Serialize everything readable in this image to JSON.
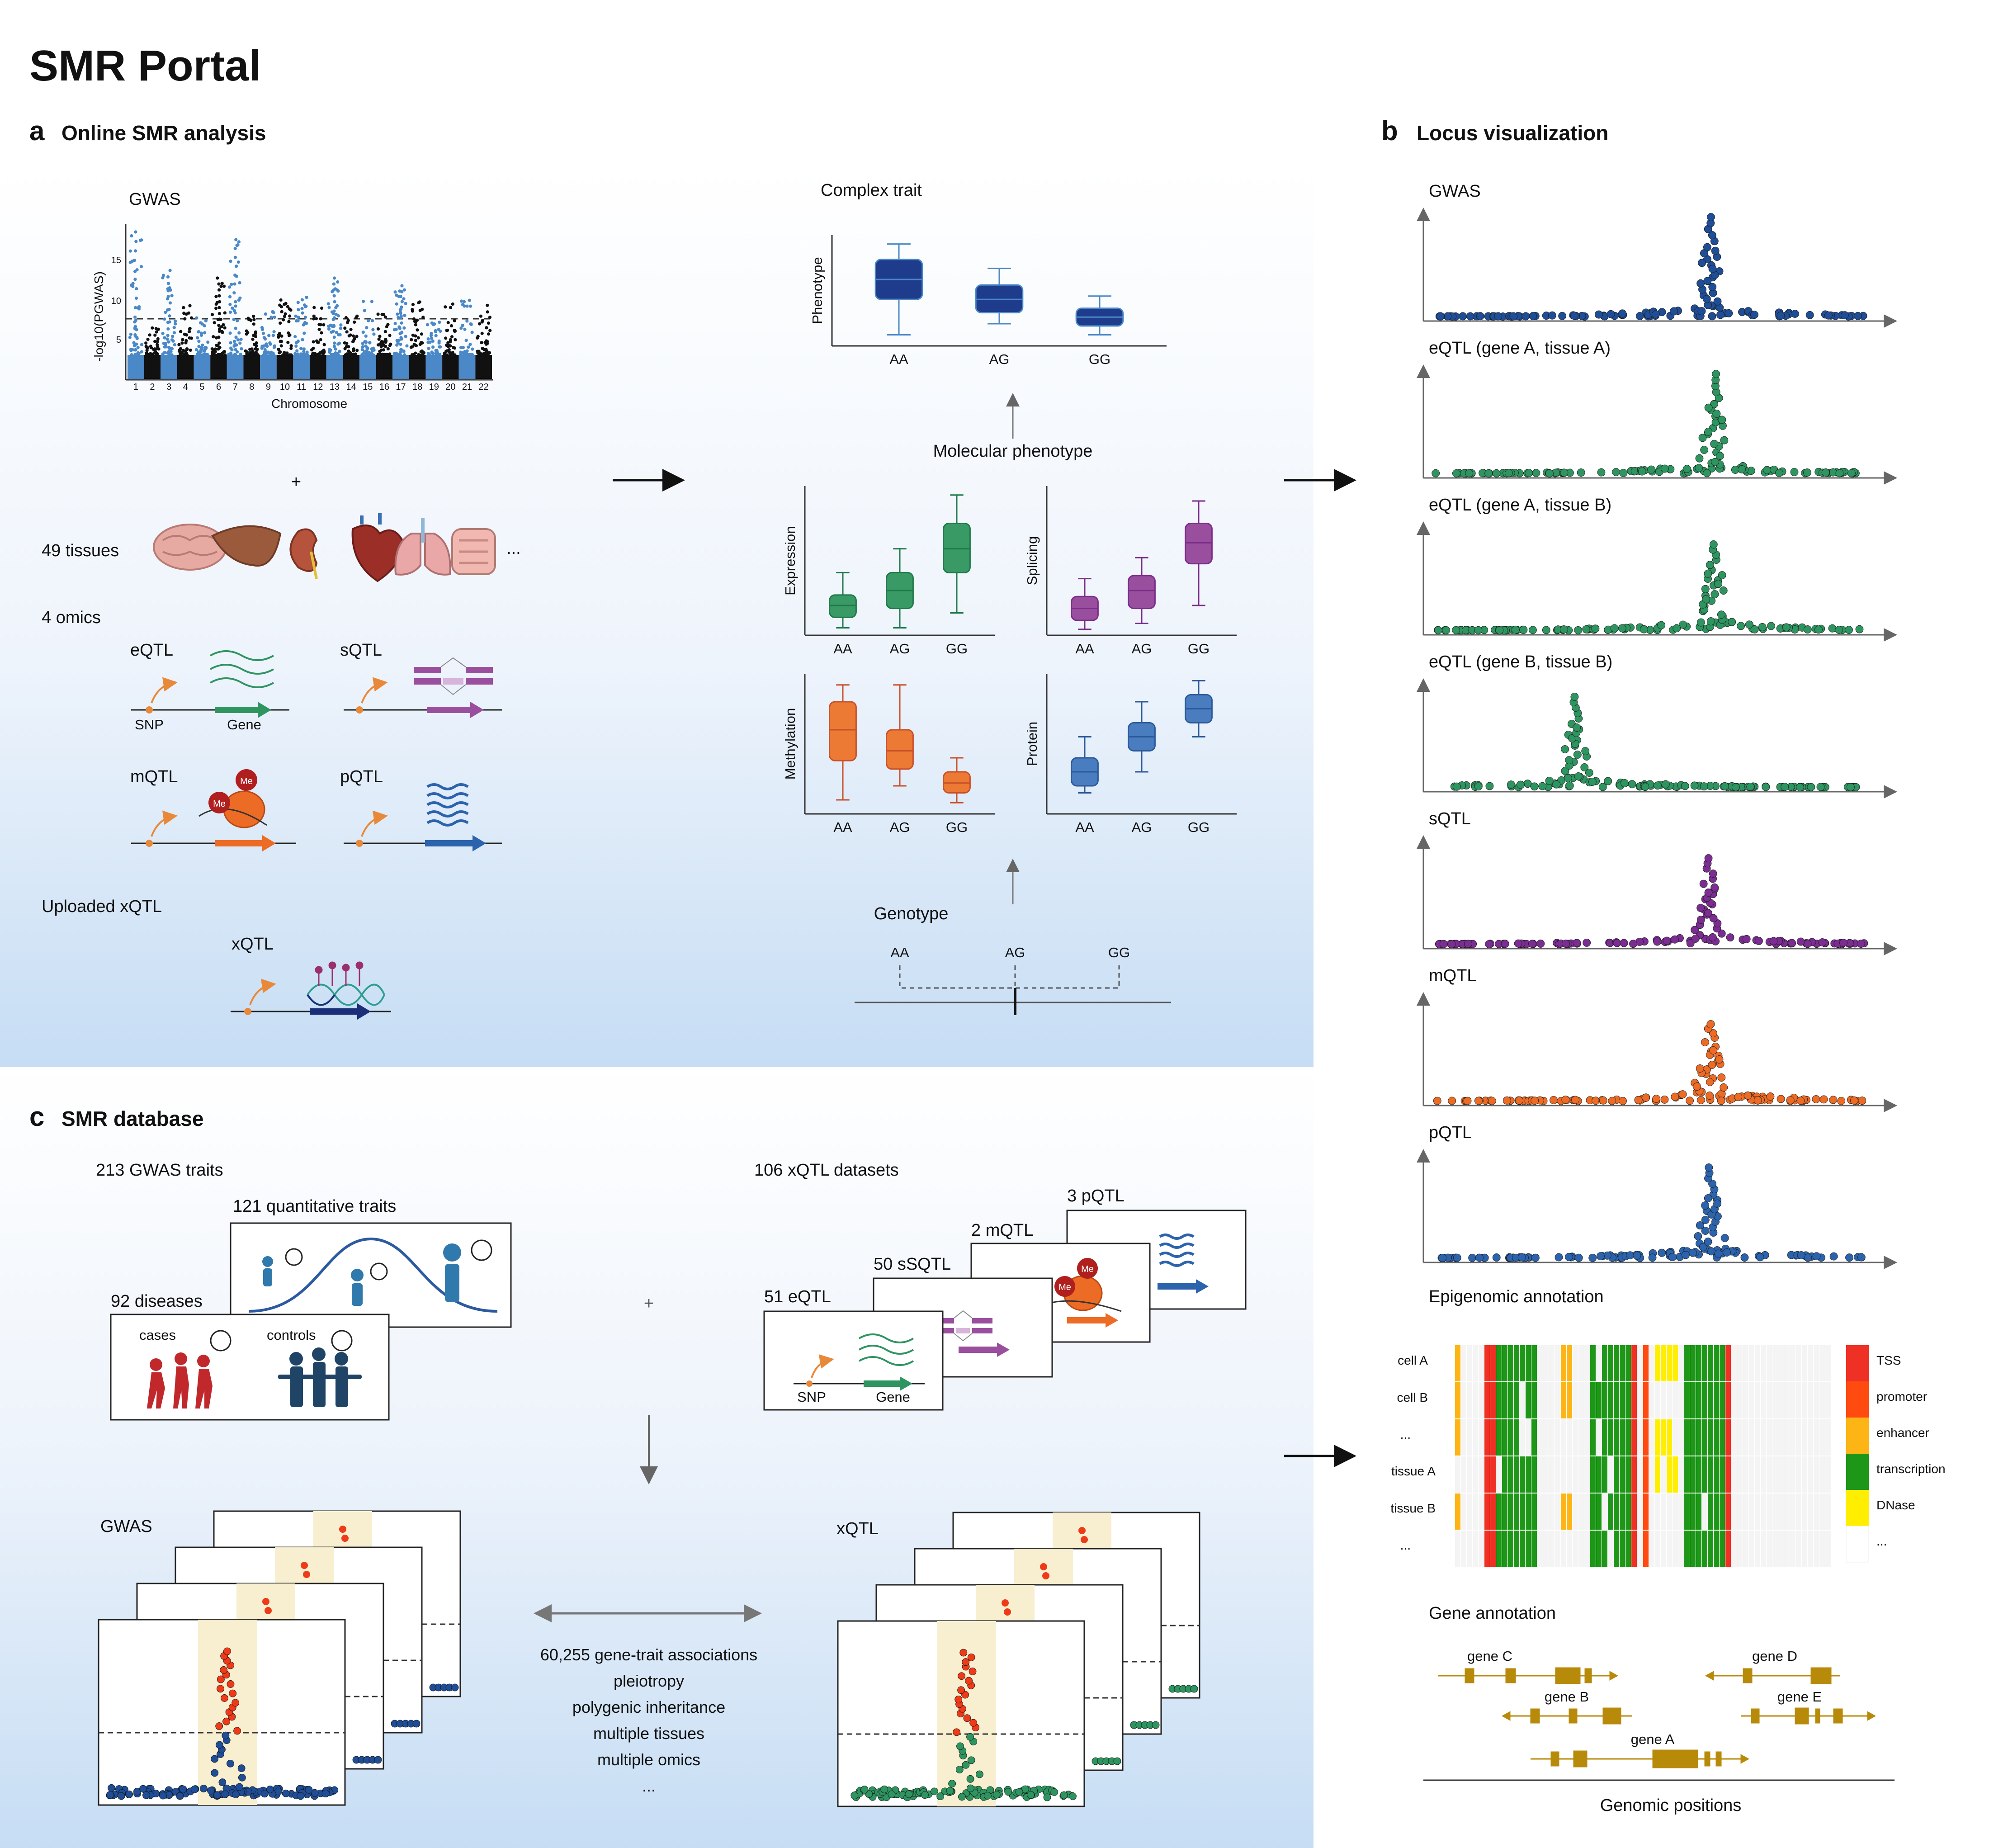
{
  "title": "SMR Portal",
  "panel_a": {
    "letter": "a",
    "title": "Online SMR analysis",
    "gwas_label": "GWAS",
    "manhattan": {
      "ylabel": "-log10(PGWAS)",
      "xlabel": "Chromosome",
      "yticks": [
        "5",
        "10",
        "15"
      ],
      "chromosomes": [
        "1",
        "2",
        "3",
        "4",
        "5",
        "6",
        "7",
        "8",
        "9",
        "10",
        "11",
        "12",
        "13",
        "14",
        "15",
        "16",
        "17",
        "18",
        "19",
        "20",
        "21",
        "22"
      ],
      "colors": [
        "#4a88c7",
        "#111111"
      ]
    },
    "plus": "+",
    "tissues_label": "49 tissues",
    "tissues_more": "...",
    "omics_label": "4 omics",
    "omics": {
      "eqtl": "eQTL",
      "sqtl": "sQTL",
      "mqtl": "mQTL",
      "pqtl": "pQTL",
      "snp": "SNP",
      "gene": "Gene",
      "me": "Me"
    },
    "uploaded_label": "Uploaded xQTL",
    "xqtl_label": "xQTL",
    "complex_trait": "Complex trait",
    "phenotype_axis": "Phenotype",
    "molecular_phenotype": "Molecular phenotype",
    "genotype_label": "Genotype",
    "genotypes": [
      "AA",
      "AG",
      "GG"
    ],
    "box_panels": {
      "expression": "Expression",
      "splicing": "Splicing",
      "methylation": "Methylation",
      "protein": "Protein"
    }
  },
  "panel_b": {
    "letter": "b",
    "title": "Locus visualization",
    "tracks": [
      {
        "label": "GWAS",
        "color": "#1f4d96"
      },
      {
        "label": "eQTL (gene A, tissue A)",
        "color": "#2e9460"
      },
      {
        "label": "eQTL (gene A, tissue B)",
        "color": "#2e9460"
      },
      {
        "label": "eQTL (gene B, tissue B)",
        "color": "#2e9460"
      },
      {
        "label": "sQTL",
        "color": "#7b2d91"
      },
      {
        "label": "mQTL",
        "color": "#ec6b25"
      },
      {
        "label": "pQTL",
        "color": "#2c63ad"
      }
    ],
    "epigenomic_title": "Epigenomic annotation",
    "cell_labels": [
      "cell A",
      "cell B",
      "...",
      "tissue A",
      "tissue B",
      "..."
    ],
    "legend": [
      {
        "label": "TSS",
        "color": "#ee3124"
      },
      {
        "label": "promoter",
        "color": "#ff4a10"
      },
      {
        "label": "enhancer",
        "color": "#fdb515"
      },
      {
        "label": "transcription",
        "color": "#1e9618"
      },
      {
        "label": "DNase",
        "color": "#ffee00"
      },
      {
        "label": "...",
        "color": "#ffffff"
      }
    ],
    "gene_annotation_title": "Gene annotation",
    "genes": [
      "gene C",
      "gene D",
      "gene B",
      "gene E",
      "gene A"
    ],
    "genomic_positions": "Genomic positions"
  },
  "panel_c": {
    "letter": "c",
    "title": "SMR database",
    "gwas_traits": "213 GWAS traits",
    "quantitative": "121 quantitative traits",
    "diseases": "92 diseases",
    "cases": "cases",
    "controls": "controls",
    "plus": "+",
    "xqtl_datasets": "106 xQTL datasets",
    "datasets": [
      "3 pQTL",
      "2 mQTL",
      "50 sSQTL",
      "51 eQTL"
    ],
    "snp": "SNP",
    "gene": "Gene",
    "me": "Me",
    "gwas_label": "GWAS",
    "xqtl_label": "xQTL",
    "summary_lines": [
      "60,255 gene-trait associations",
      "pleiotropy",
      "polygenic inheritance",
      "multiple tissues",
      "multiple omics",
      "..."
    ]
  }
}
